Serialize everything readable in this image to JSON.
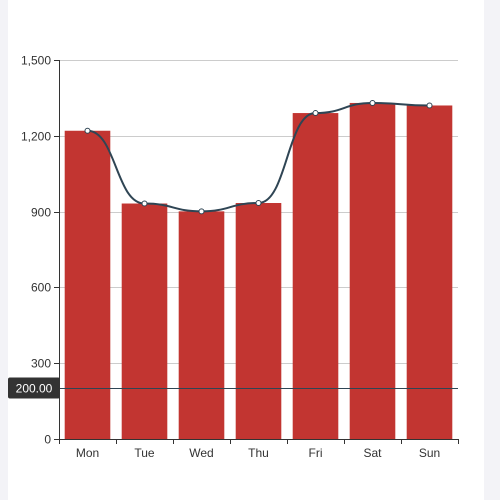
{
  "chart_data": {
    "type": "bar",
    "categories": [
      "Mon",
      "Tue",
      "Wed",
      "Thu",
      "Fri",
      "Sat",
      "Sun"
    ],
    "series": [
      {
        "type": "bar",
        "values": [
          1220,
          932,
          901,
          934,
          1290,
          1330,
          1320
        ],
        "color": "#c23531"
      },
      {
        "type": "line",
        "values": [
          1220,
          932,
          901,
          934,
          1290,
          1330,
          1320
        ],
        "color": "#2f4554"
      }
    ],
    "ylim": [
      0,
      1500
    ],
    "yticks": [
      0,
      300,
      600,
      900,
      1200,
      1500
    ],
    "ytick_labels": [
      "0",
      "300",
      "600",
      "900",
      "1,200",
      "1,500"
    ],
    "reference_line": {
      "value": 200,
      "label": "200.00",
      "color": "#2f4554"
    },
    "grid": true,
    "legend": false
  }
}
